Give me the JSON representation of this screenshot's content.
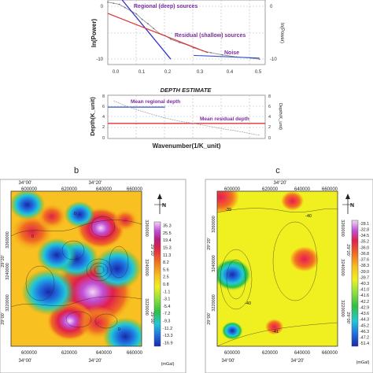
{
  "top_chart": {
    "annotations": {
      "regional": "Regional (deep) sources",
      "residual": "Residual (shallow) sources",
      "noise": "Noise"
    },
    "ylabel_left": "ln(Power)",
    "ylabel_right": "ln(Power)",
    "y_ticks": [
      "0",
      "-10"
    ],
    "y_ticks_right": [
      "0",
      "-10"
    ],
    "x_ticks": [
      "0.0",
      "0.1",
      "0.2",
      "0.3",
      "0.4",
      "0.5"
    ]
  },
  "depth_chart": {
    "title": "DEPTH ESTIMATE",
    "ylabel_left": "Depth(K_unit)",
    "ylabel_right": "Depth(K_unit)",
    "xlabel": "Wavenumber(1/K_unit)",
    "y_ticks": [
      "8",
      "6",
      "4",
      "2",
      "0"
    ],
    "annotations": {
      "mean_regional": "Mean regional depth",
      "mean_residual": "Mean residual depth"
    }
  },
  "panel_b": {
    "letter": "b",
    "x_ticks_top": [
      "600000",
      "620000",
      "640000",
      "660000"
    ],
    "x_ticks_bottom": [
      "600000",
      "620000",
      "640000",
      "660000"
    ],
    "lon_top": [
      "34°00'",
      "34°20'"
    ],
    "lon_bottom": [
      "34°00'",
      "34°20'"
    ],
    "y_ticks_left": [
      "3260000",
      "3240000",
      "3220000"
    ],
    "lat_left": [
      "29°20'",
      "29°00'"
    ],
    "y_ticks_right": [
      "3260000",
      "3240000",
      "3220000"
    ],
    "lat_right": [
      "29°20'",
      "29°00'"
    ],
    "north": "N",
    "colorbar_values": [
      "35.3",
      "25.5",
      "19.4",
      "15.3",
      "11.3",
      "8.2",
      "5.6",
      "2.5",
      "0.8",
      "-1.1",
      "-3.1",
      "-5.4",
      "-7.2",
      "-9.3",
      "-11.2",
      "-13.3",
      "-16.9"
    ],
    "unit": "(mGal)"
  },
  "panel_c": {
    "letter": "c",
    "x_ticks_top": [
      "600000",
      "620000",
      "640000",
      "660000"
    ],
    "x_ticks_bottom": [
      "600000",
      "620000",
      "640000",
      "660000"
    ],
    "lon_top": [
      "34°20'"
    ],
    "lon_bottom": [
      "34°00'",
      "34°20'"
    ],
    "y_ticks_left": [
      "3260000",
      "3240000",
      "3220000"
    ],
    "lat_left": [
      "29°20'",
      "29°00'"
    ],
    "y_ticks_right": [
      "3260000",
      "3240000",
      "3220000"
    ],
    "lat_right": [
      "29°20'",
      "29°00'"
    ],
    "north": "N",
    "contour_labels": [
      "-39",
      "-40",
      "-40",
      "-41"
    ],
    "colorbar_values": [
      "-28.1",
      "-32.8",
      "-34.5",
      "-35.2",
      "-36.0",
      "-36.8",
      "-37.6",
      "-38.3",
      "-39.0",
      "-39.7",
      "-40.3",
      "-41.0",
      "-41.6",
      "-42.2",
      "-42.9",
      "-43.6",
      "-44.3",
      "-45.2",
      "-46.3",
      "-47.2",
      "-51.4"
    ],
    "unit": "(mGal)"
  },
  "colors": {
    "regional_line": "#3333cc",
    "residual_line": "#dd3333",
    "annotation_text": "#7a2ca0"
  },
  "chart_data": [
    {
      "type": "line",
      "ylabel": "ln(Power)",
      "xlim": [
        0.0,
        0.55
      ],
      "ylim": [
        -11,
        1
      ],
      "grid": true,
      "series": [
        {
          "x": [
            0.0,
            0.02,
            0.04,
            0.06,
            0.08,
            0.1,
            0.12,
            0.14,
            0.16,
            0.18,
            0.2,
            0.22,
            0.25,
            0.28,
            0.3,
            0.33,
            0.36,
            0.4,
            0.45,
            0.5,
            0.53
          ],
          "y": [
            0.6,
            0.4,
            0.2,
            -0.4,
            -1.0,
            -1.6,
            -2.6,
            -3.4,
            -4.3,
            -5.2,
            -5.6,
            -6.3,
            -6.9,
            -7.4,
            -7.9,
            -8.4,
            -8.8,
            -9.2,
            -9.6,
            -9.8,
            -10.0
          ]
        },
        {
          "x": [
            0.05,
            0.22
          ],
          "y": [
            1.0,
            -10.0
          ]
        },
        {
          "x": [
            0.0,
            0.35
          ],
          "y": [
            -1.5,
            -8.8
          ]
        },
        {
          "x": [
            0.3,
            0.53
          ],
          "y": [
            -9.3,
            -9.8
          ]
        }
      ]
    },
    {
      "type": "line",
      "title": "DEPTH ESTIMATE",
      "xlabel": "Wavenumber(1/K_unit)",
      "ylabel": "Depth(K_unit)",
      "xlim": [
        0.0,
        0.55
      ],
      "ylim": [
        0,
        8
      ],
      "grid": true,
      "series": [
        {
          "x": [
            0.0,
            0.2
          ],
          "y": [
            5.8,
            5.8
          ]
        },
        {
          "x": [
            0.0,
            0.55
          ],
          "y": [
            2.8,
            2.8
          ]
        },
        {
          "x": [
            0.02,
            0.05,
            0.08,
            0.12,
            0.16,
            0.2,
            0.25,
            0.3,
            0.35,
            0.4,
            0.45,
            0.5,
            0.53
          ],
          "y": [
            7.0,
            6.3,
            5.7,
            5.0,
            4.4,
            3.8,
            3.2,
            2.8,
            2.3,
            1.8,
            1.4,
            0.9,
            0.6
          ]
        }
      ]
    },
    {
      "type": "heatmap",
      "colorbar": [
        "35.3",
        "25.5",
        "19.4",
        "15.3",
        "11.3",
        "8.2",
        "5.6",
        "2.5",
        "0.8",
        "-1.1",
        "-3.1",
        "-5.4",
        "-7.2",
        "-9.3",
        "-11.2",
        "-13.3",
        "-16.9"
      ],
      "unit": "(mGal)",
      "xlim": [
        590000,
        670000
      ],
      "ylim": [
        3195000,
        3275000
      ],
      "contour_labels": [
        "0",
        "0",
        "0"
      ],
      "blobs": [
        {
          "x": 640000,
          "y": 3223000,
          "value": 30
        },
        {
          "x": 626000,
          "y": 3208000,
          "value": 15
        },
        {
          "x": 643000,
          "y": 3207000,
          "value": 12
        },
        {
          "x": 645000,
          "y": 3256000,
          "value": 16
        },
        {
          "x": 603000,
          "y": 3254000,
          "value": 14
        },
        {
          "x": 615000,
          "y": 3262000,
          "value": 8
        },
        {
          "x": 660000,
          "y": 3260000,
          "value": 6
        },
        {
          "x": 613000,
          "y": 3223000,
          "value": -14
        },
        {
          "x": 630000,
          "y": 3240000,
          "value": -10
        },
        {
          "x": 655000,
          "y": 3235000,
          "value": -12
        },
        {
          "x": 618000,
          "y": 3242000,
          "value": -8
        },
        {
          "x": 600000,
          "y": 3268000,
          "value": -6
        },
        {
          "x": 660000,
          "y": 3200000,
          "value": -10
        },
        {
          "x": 632000,
          "y": 3263000,
          "value": -4
        }
      ]
    },
    {
      "type": "heatmap",
      "colorbar": [
        "-28.1",
        "-32.8",
        "-34.5",
        "-35.2",
        "-36.0",
        "-36.8",
        "-37.6",
        "-38.3",
        "-39.0",
        "-39.7",
        "-40.3",
        "-41.0",
        "-41.6",
        "-42.2",
        "-42.9",
        "-43.6",
        "-44.3",
        "-45.2",
        "-46.3",
        "-47.2",
        "-51.4"
      ],
      "unit": "(mGal)",
      "xlim": [
        590000,
        670000
      ],
      "ylim": [
        3195000,
        3275000
      ],
      "contour_labels": [
        "-39",
        "-40",
        "-40",
        "-41"
      ],
      "blobs": [
        {
          "x": 600000,
          "y": 3232000,
          "value": -49
        },
        {
          "x": 648000,
          "y": 3240000,
          "value": -34
        },
        {
          "x": 592000,
          "y": 3272000,
          "value": -30
        },
        {
          "x": 628000,
          "y": 3205000,
          "value": -39
        },
        {
          "x": 600000,
          "y": 3203000,
          "value": -42
        },
        {
          "x": 640000,
          "y": 3270000,
          "value": -37
        }
      ]
    }
  ]
}
